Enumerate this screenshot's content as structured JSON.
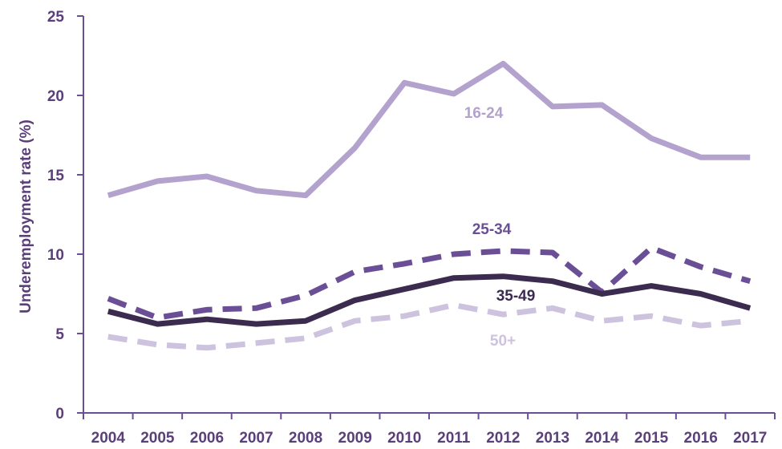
{
  "chart_data": {
    "type": "line",
    "ylabel": "Underemployment rate (%)",
    "xlabel": "",
    "ylim": [
      0,
      25
    ],
    "yticks": [
      0,
      5,
      10,
      15,
      20,
      25
    ],
    "categories": [
      "2004",
      "2005",
      "2006",
      "2007",
      "2008",
      "2009",
      "2010",
      "2011",
      "2012",
      "2013",
      "2014",
      "2015",
      "2016",
      "2017"
    ],
    "grid": false,
    "series": [
      {
        "name": "16-24",
        "color": "#b3a2cd",
        "dash": "solid",
        "values": [
          13.7,
          14.6,
          14.9,
          14.0,
          13.7,
          16.7,
          20.8,
          20.1,
          22.0,
          19.3,
          19.4,
          17.3,
          16.1,
          16.1
        ]
      },
      {
        "name": "25-34",
        "color": "#6b4f96",
        "dash": "dashed",
        "values": [
          7.2,
          6.0,
          6.5,
          6.6,
          7.4,
          8.9,
          9.4,
          10.0,
          10.2,
          10.1,
          7.6,
          10.4,
          9.2,
          8.3
        ]
      },
      {
        "name": "35-49",
        "color": "#3b2b4f",
        "dash": "solid",
        "values": [
          6.4,
          5.6,
          5.9,
          5.6,
          5.8,
          7.1,
          7.8,
          8.5,
          8.6,
          8.3,
          7.5,
          8.0,
          7.5,
          6.6
        ]
      },
      {
        "name": "50+",
        "color": "#cdc3de",
        "dash": "dashed",
        "values": [
          4.8,
          4.3,
          4.1,
          4.4,
          4.7,
          5.8,
          6.1,
          6.8,
          6.2,
          6.6,
          5.8,
          6.1,
          5.5,
          5.8
        ]
      }
    ]
  }
}
